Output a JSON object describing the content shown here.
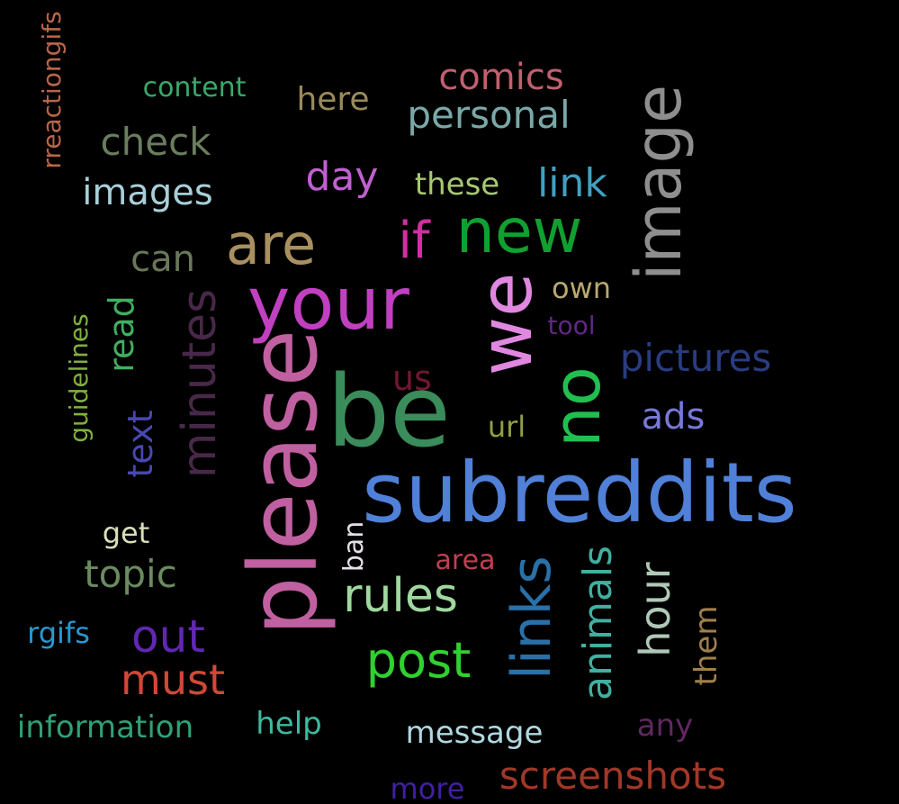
{
  "words": [
    {
      "text": "rreactiongifs",
      "color": "#b8664a",
      "vertical": true
    },
    {
      "text": "content",
      "color": "#3aa86a",
      "vertical": false
    },
    {
      "text": "here",
      "color": "#9a8a5a",
      "vertical": false
    },
    {
      "text": "comics",
      "color": "#c0606e",
      "vertical": false
    },
    {
      "text": "personal",
      "color": "#7aa8a8",
      "vertical": false
    },
    {
      "text": "image",
      "color": "#8e8e8e",
      "vertical": true
    },
    {
      "text": "check",
      "color": "#6a7d5e",
      "vertical": false
    },
    {
      "text": "images",
      "color": "#a8cfd8",
      "vertical": false
    },
    {
      "text": "day",
      "color": "#c060d0",
      "vertical": false
    },
    {
      "text": "these",
      "color": "#a8c870",
      "vertical": false
    },
    {
      "text": "link",
      "color": "#40a0c0",
      "vertical": false
    },
    {
      "text": "new",
      "color": "#10a030",
      "vertical": false
    },
    {
      "text": "are",
      "color": "#a89060",
      "vertical": false
    },
    {
      "text": "if",
      "color": "#d030a0",
      "vertical": false
    },
    {
      "text": "can",
      "color": "#6a7858",
      "vertical": false
    },
    {
      "text": "your",
      "color": "#c040c0",
      "vertical": false
    },
    {
      "text": "we",
      "color": "#e088e0",
      "vertical": true
    },
    {
      "text": "own",
      "color": "#b8a870",
      "vertical": false
    },
    {
      "text": "tool",
      "color": "#602880",
      "vertical": false
    },
    {
      "text": "guidelines",
      "color": "#80b040",
      "vertical": true
    },
    {
      "text": "read",
      "color": "#40b060",
      "vertical": true
    },
    {
      "text": "minutes",
      "color": "#482848",
      "vertical": true
    },
    {
      "text": "pictures",
      "color": "#2a3c80",
      "vertical": false
    },
    {
      "text": "us",
      "color": "#701830",
      "vertical": false
    },
    {
      "text": "be",
      "color": "#3a8c5a",
      "vertical": false
    },
    {
      "text": "no",
      "color": "#20c050",
      "vertical": true
    },
    {
      "text": "ads",
      "color": "#7878d8",
      "vertical": false
    },
    {
      "text": "url",
      "color": "#90a040",
      "vertical": false
    },
    {
      "text": "text",
      "color": "#4848b0",
      "vertical": true
    },
    {
      "text": "please",
      "color": "#c060a0",
      "vertical": true
    },
    {
      "text": "subreddits",
      "color": "#5080d8",
      "vertical": false
    },
    {
      "text": "get",
      "color": "#d8e0b8",
      "vertical": false
    },
    {
      "text": "ban",
      "color": "#e8e0e8",
      "vertical": true
    },
    {
      "text": "area",
      "color": "#c04050",
      "vertical": false
    },
    {
      "text": "topic",
      "color": "#6a8a60",
      "vertical": false
    },
    {
      "text": "rules",
      "color": "#a0d8a0",
      "vertical": false
    },
    {
      "text": "links",
      "color": "#2a70a8",
      "vertical": true
    },
    {
      "text": "animals",
      "color": "#40b0a0",
      "vertical": true
    },
    {
      "text": "hour",
      "color": "#b0c8b8",
      "vertical": true
    },
    {
      "text": "them",
      "color": "#a08048",
      "vertical": true
    },
    {
      "text": "rgifs",
      "color": "#2898d0",
      "vertical": false
    },
    {
      "text": "out",
      "color": "#6028b0",
      "vertical": false
    },
    {
      "text": "post",
      "color": "#30d030",
      "vertical": false
    },
    {
      "text": "must",
      "color": "#d04838",
      "vertical": false
    },
    {
      "text": "information",
      "color": "#30a078",
      "vertical": false
    },
    {
      "text": "help",
      "color": "#40b8a0",
      "vertical": false
    },
    {
      "text": "message",
      "color": "#b0d8e0",
      "vertical": false
    },
    {
      "text": "any",
      "color": "#602860",
      "vertical": false
    },
    {
      "text": "more",
      "color": "#4020a0",
      "vertical": false
    },
    {
      "text": "screenshots",
      "color": "#a03828",
      "vertical": false
    }
  ]
}
